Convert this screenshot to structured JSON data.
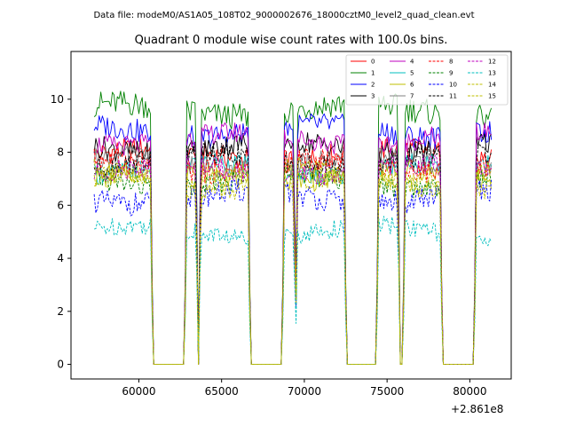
{
  "chart_data": {
    "type": "line",
    "suptitle": "Data file: modeM0/AS1A05_108T02_9000002676_18000cztM0_level2_quad_clean.evt",
    "title": "Quadrant 0 module wise count rates with 100.0s bins.",
    "xlabel": "",
    "ylabel": "",
    "x_offset_label": "+2.861e8",
    "xlim": [
      55900,
      82500
    ],
    "ylim": [
      -0.55,
      11.8
    ],
    "x_ticks": [
      60000,
      65000,
      70000,
      75000,
      80000
    ],
    "x_tick_labels": [
      "60000",
      "65000",
      "70000",
      "75000",
      "80000"
    ],
    "y_ticks": [
      0,
      2,
      4,
      6,
      8,
      10
    ],
    "y_tick_labels": [
      "0",
      "2",
      "4",
      "6",
      "8",
      "10"
    ],
    "legend_position": "top-right",
    "legend_columns": 4,
    "on_segments": [
      [
        57300,
        60700
      ],
      [
        62900,
        63450
      ],
      [
        63750,
        66600
      ],
      [
        68800,
        69350
      ],
      [
        69600,
        72400
      ],
      [
        74500,
        75650
      ],
      [
        76100,
        78200
      ],
      [
        80400,
        81300
      ]
    ],
    "series": [
      {
        "name": "0",
        "color": "#ff0000",
        "dash": "solid",
        "level": 7.9,
        "amp": 0.45
      },
      {
        "name": "1",
        "color": "#008000",
        "dash": "solid",
        "level": 9.6,
        "amp": 0.5
      },
      {
        "name": "2",
        "color": "#0000ff",
        "dash": "solid",
        "level": 8.8,
        "amp": 0.45
      },
      {
        "name": "3",
        "color": "#000000",
        "dash": "solid",
        "level": 8.2,
        "amp": 0.45
      },
      {
        "name": "4",
        "color": "#bf00bf",
        "dash": "solid",
        "level": 8.5,
        "amp": 0.4
      },
      {
        "name": "5",
        "color": "#00bfbf",
        "dash": "solid",
        "level": 7.4,
        "amp": 0.4
      },
      {
        "name": "6",
        "color": "#bfbf00",
        "dash": "solid",
        "level": 7.1,
        "amp": 0.4
      },
      {
        "name": "7",
        "color": "#808080",
        "dash": "solid",
        "level": 7.6,
        "amp": 0.4
      },
      {
        "name": "8",
        "color": "#ff0000",
        "dash": "dashed",
        "level": 7.5,
        "amp": 0.45
      },
      {
        "name": "9",
        "color": "#008000",
        "dash": "dashed",
        "level": 6.9,
        "amp": 0.4
      },
      {
        "name": "10",
        "color": "#0000ff",
        "dash": "dashed",
        "level": 6.3,
        "amp": 0.45
      },
      {
        "name": "11",
        "color": "#000000",
        "dash": "dashed",
        "level": 7.7,
        "amp": 0.4
      },
      {
        "name": "12",
        "color": "#bf00bf",
        "dash": "dashed",
        "level": 7.3,
        "amp": 0.4
      },
      {
        "name": "13",
        "color": "#00bfbf",
        "dash": "dashed",
        "level": 5.0,
        "amp": 0.35
      },
      {
        "name": "14",
        "color": "#bfbf00",
        "dash": "dashed",
        "level": 6.8,
        "amp": 0.4
      },
      {
        "name": "15",
        "color": "#bfbf00",
        "dash": "dashed",
        "level": 7.2,
        "amp": 0.4
      }
    ]
  }
}
